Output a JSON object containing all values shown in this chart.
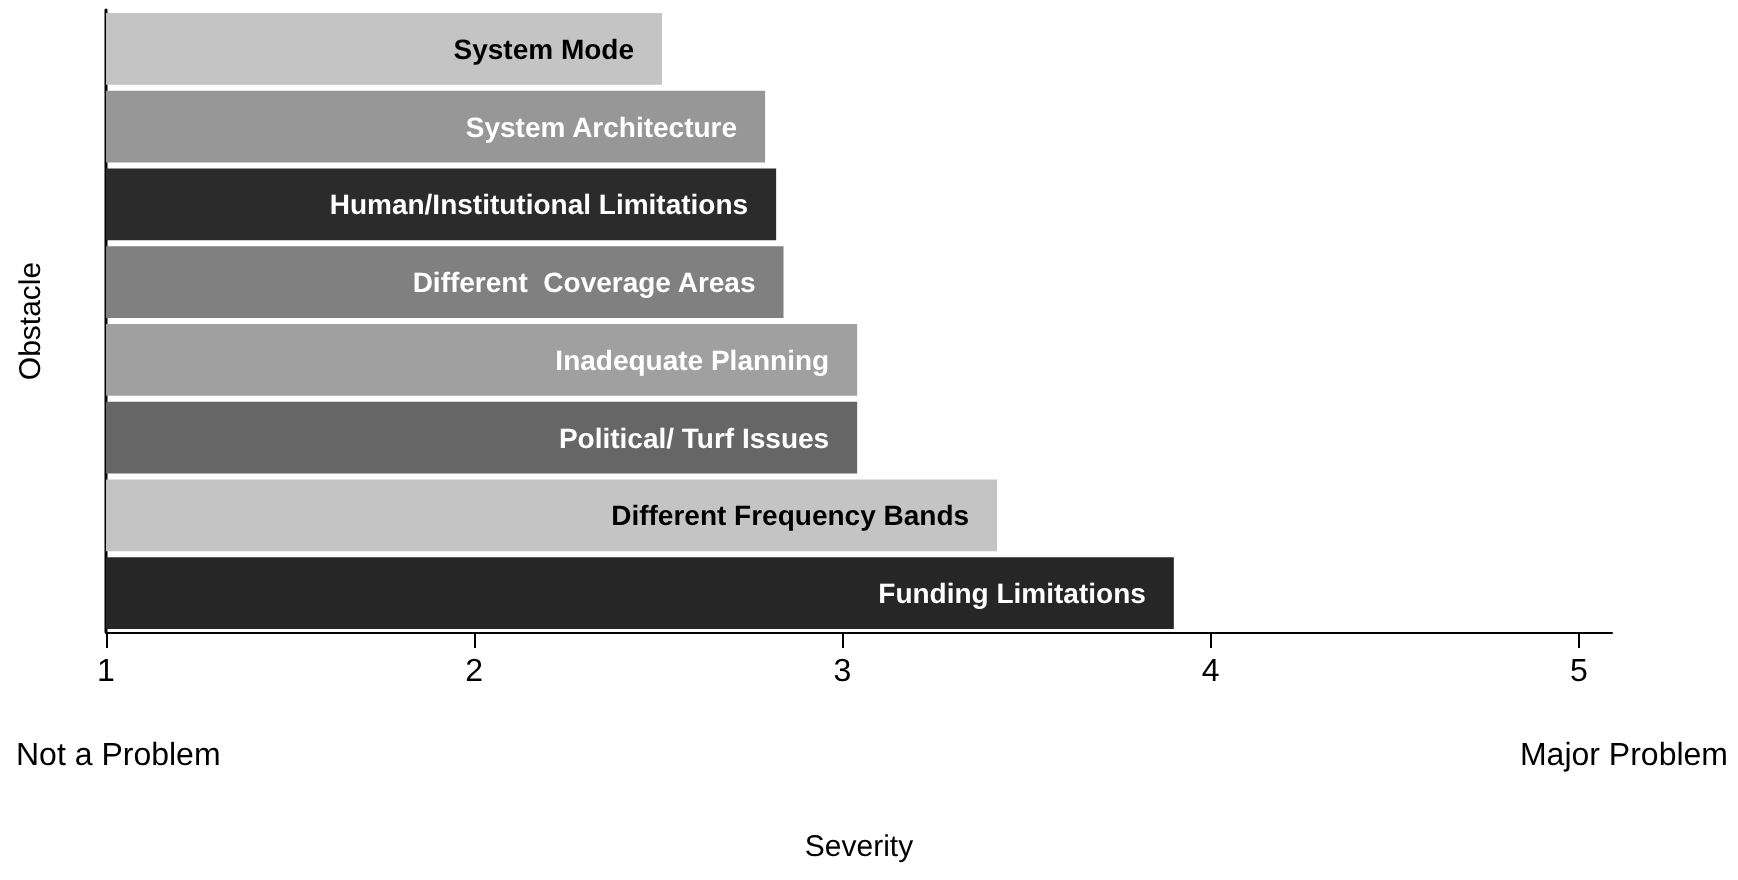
{
  "chart_data": {
    "type": "bar",
    "orientation": "horizontal",
    "xlabel": "Severity",
    "ylabel": "Obstacle",
    "categories": [
      "System Mode",
      "System Architecture",
      "Human/Institutional Limitations",
      "Different  Coverage Areas",
      "Inadequate Planning",
      "Political/ Turf Issues",
      "Different Frequency Bands",
      "Funding Limitations"
    ],
    "values": [
      2.51,
      2.79,
      2.82,
      2.84,
      3.04,
      3.04,
      3.42,
      3.9
    ],
    "colors": [
      "#c4c4c4",
      "#979797",
      "#2b2b2b",
      "#808080",
      "#a0a0a0",
      "#666666",
      "#c4c4c4",
      "#262626"
    ],
    "xlim": [
      1,
      5.09
    ],
    "xticks": [
      1,
      2,
      3,
      4,
      5
    ],
    "tick_labels": "x",
    "annotations": [
      "Not a Problem",
      "Major Problem"
    ]
  }
}
